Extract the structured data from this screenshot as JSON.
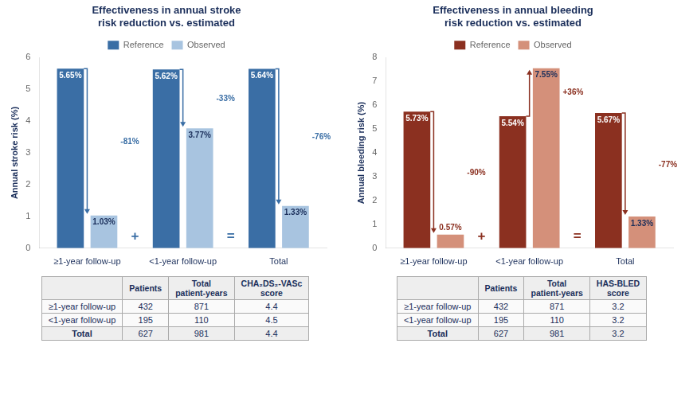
{
  "chart_data": [
    {
      "type": "bar",
      "title": "Effectiveness in annual stroke\nrisk reduction vs. estimated",
      "ylabel": "Annual stroke risk (%)",
      "categories": [
        "≥1-year follow-up",
        "<1-year follow-up",
        "Total"
      ],
      "series": [
        {
          "name": "Reference",
          "color": "#3a6ea5",
          "values": [
            5.65,
            5.62,
            5.64
          ],
          "value_labels": [
            "5.65%",
            "5.62%",
            "5.64%"
          ]
        },
        {
          "name": "Observed",
          "color": "#a8c4e0",
          "values": [
            1.03,
            3.77,
            1.33
          ],
          "value_labels": [
            "1.03%",
            "3.77%",
            "1.33%"
          ]
        }
      ],
      "data_labels": true,
      "change_labels": [
        "-81%",
        "-33%",
        "-76%"
      ],
      "group_operators": [
        "+",
        "="
      ],
      "ylim": [
        0,
        6
      ],
      "yticks": [
        0,
        1,
        2,
        3,
        4,
        5,
        6
      ],
      "grid": false,
      "legend": "top",
      "table": {
        "columns": [
          null,
          "Patients",
          "Total\npatient-years",
          "CHA₂DS₂-VASc\nscore"
        ],
        "rows": [
          [
            "≥1-year follow-up",
            432,
            871,
            4.4
          ],
          [
            "<1-year follow-up",
            195,
            110,
            4.5
          ],
          [
            "Total",
            627,
            981,
            4.4
          ]
        ]
      }
    },
    {
      "type": "bar",
      "title": "Effectiveness in annual bleeding\nrisk reduction vs. estimated",
      "ylabel": "Annual bleeding risk (%)",
      "categories": [
        "≥1-year follow-up",
        "<1-year follow-up",
        "Total"
      ],
      "series": [
        {
          "name": "Reference",
          "color": "#8b3020",
          "values": [
            5.73,
            5.54,
            5.67
          ],
          "value_labels": [
            "5.73%",
            "5.54%",
            "5.67%"
          ]
        },
        {
          "name": "Observed",
          "color": "#d4907a",
          "values": [
            0.57,
            7.55,
            1.33
          ],
          "value_labels": [
            "0.57%",
            "7.55%",
            "1.33%"
          ]
        }
      ],
      "data_labels": true,
      "change_labels": [
        "-90%",
        "+36%",
        "-77%"
      ],
      "group_operators": [
        "+",
        "="
      ],
      "ylim": [
        0,
        8
      ],
      "yticks": [
        0,
        1,
        2,
        3,
        4,
        5,
        6,
        7,
        8
      ],
      "grid": false,
      "legend": "top",
      "table": {
        "columns": [
          null,
          "Patients",
          "Total\npatient-years",
          "HAS-BLED\nscore"
        ],
        "rows": [
          [
            "≥1-year follow-up",
            432,
            871,
            3.2
          ],
          [
            "<1-year follow-up",
            195,
            110,
            3.2
          ],
          [
            "Total",
            627,
            981,
            3.2
          ]
        ]
      }
    }
  ]
}
